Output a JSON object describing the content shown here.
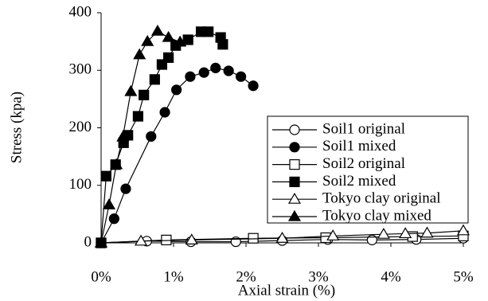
{
  "chart_data": {
    "type": "line",
    "xlabel": "Axial strain (%)",
    "ylabel": "Stress (kpa)",
    "xlim": [
      0,
      5
    ],
    "ylim": [
      0,
      400
    ],
    "xticks": [
      {
        "value": 0,
        "label": "0%"
      },
      {
        "value": 1,
        "label": "1%"
      },
      {
        "value": 2,
        "label": "2%"
      },
      {
        "value": 3,
        "label": "3%"
      },
      {
        "value": 4,
        "label": "4%"
      },
      {
        "value": 5,
        "label": "5%"
      }
    ],
    "yticks": [
      0,
      100,
      200,
      300,
      400
    ],
    "legend": "right",
    "series": [
      {
        "name": "Soil1 original",
        "color": "#000000",
        "marker": "circle",
        "filled": false,
        "x": [
          0,
          0.63,
          1.24,
          1.86,
          2.5,
          3.13,
          3.74,
          4.35,
          5
        ],
        "values": [
          0,
          3,
          2,
          2,
          4,
          6,
          5,
          6,
          8
        ]
      },
      {
        "name": "Soil1 mixed",
        "color": "#000000",
        "marker": "circle",
        "filled": true,
        "x": [
          0,
          0.18,
          0.34,
          0.69,
          0.88,
          1.04,
          1.23,
          1.42,
          1.58,
          1.76,
          1.93,
          2.1
        ],
        "values": [
          0,
          42,
          94,
          185,
          227,
          266,
          289,
          296,
          304,
          299,
          289,
          273
        ]
      },
      {
        "name": "Soil2 original",
        "color": "#000000",
        "marker": "square",
        "filled": false,
        "x": [
          0,
          0.9,
          2.1,
          3.1,
          4.3,
          5
        ],
        "values": [
          0,
          5,
          8,
          9,
          11,
          12
        ]
      },
      {
        "name": "Soil2 mixed",
        "color": "#000000",
        "marker": "square",
        "filled": true,
        "x": [
          0,
          0.07,
          0.2,
          0.31,
          0.37,
          0.51,
          0.59,
          0.74,
          0.84,
          0.93,
          1.03,
          1.2,
          1.38,
          1.48,
          1.65,
          1.68
        ],
        "values": [
          0,
          116,
          136,
          174,
          187,
          220,
          257,
          284,
          310,
          322,
          343,
          353,
          367,
          367,
          357,
          345
        ]
      },
      {
        "name": "Tokyo clay original",
        "color": "#000000",
        "marker": "triangle",
        "filled": false,
        "x": [
          0,
          0.55,
          1.25,
          2.5,
          3.2,
          3.9,
          4.2,
          4.5,
          5
        ],
        "values": [
          0,
          3,
          5,
          8,
          12,
          15,
          16,
          17,
          21
        ]
      },
      {
        "name": "Tokyo clay mixed",
        "color": "#000000",
        "marker": "triangle",
        "filled": true,
        "x": [
          0,
          0.11,
          0.21,
          0.3,
          0.41,
          0.53,
          0.64,
          0.78,
          0.93,
          1.09
        ],
        "values": [
          0,
          66,
          136,
          184,
          263,
          327,
          350,
          368,
          357,
          349
        ]
      }
    ]
  }
}
